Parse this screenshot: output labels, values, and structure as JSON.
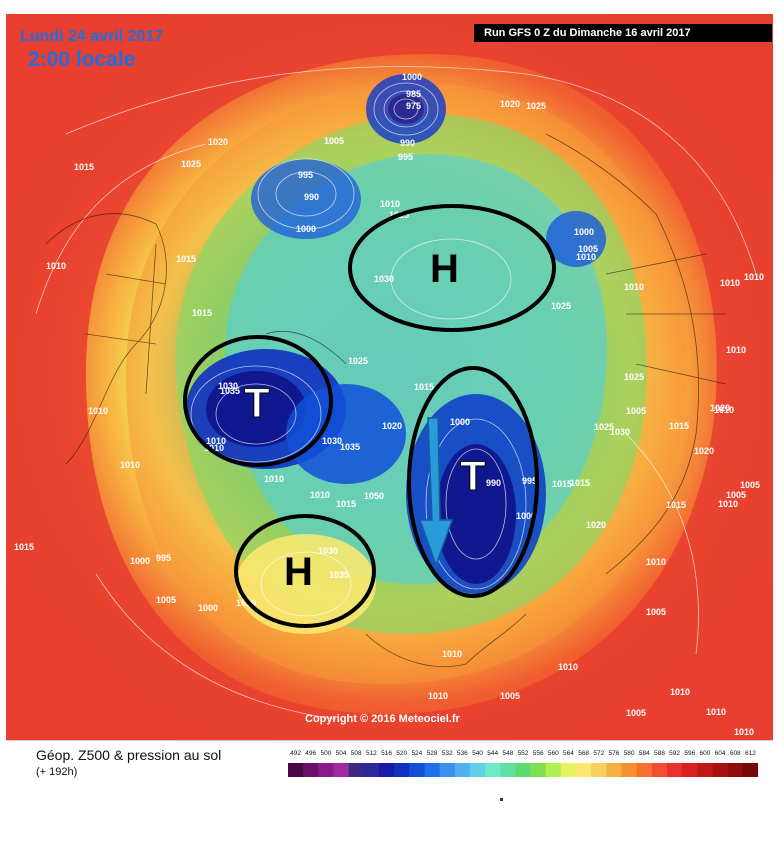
{
  "header": {
    "date": "Lundi 24 avril 2017",
    "time": "2:00 locale",
    "run": "Run GFS 0 Z du Dimanche 16 avril 2017"
  },
  "copyright": "Copyright © 2016 Meteociel.fr",
  "legend": {
    "title": "Géop. Z500 & pression au sol",
    "subtitle": "(+ 192h)",
    "scale_values": [
      "492",
      "496",
      "500",
      "504",
      "508",
      "512",
      "516",
      "520",
      "524",
      "528",
      "532",
      "536",
      "540",
      "544",
      "548",
      "552",
      "556",
      "560",
      "564",
      "568",
      "572",
      "576",
      "580",
      "584",
      "588",
      "592",
      "596",
      "600",
      "604",
      "608",
      "612"
    ],
    "scale_colors": [
      "#4a0a4a",
      "#6a106a",
      "#8a1a8a",
      "#a02aa0",
      "#3a2a80",
      "#2a2a9a",
      "#1a1aa8",
      "#1030c0",
      "#1050d8",
      "#2070e8",
      "#3a90f0",
      "#50b0f0",
      "#60d0e8",
      "#70e8c8",
      "#60e0a0",
      "#60d870",
      "#80e050",
      "#b0f050",
      "#e8f060",
      "#f8e870",
      "#f8d060",
      "#f8b040",
      "#f89030",
      "#f87030",
      "#f05030",
      "#e83030",
      "#d82020",
      "#c01818",
      "#a81010",
      "#900c0c",
      "#780808"
    ]
  },
  "systems": [
    {
      "letter": "H"
    },
    {
      "letter": "T"
    },
    {
      "letter": "T"
    },
    {
      "letter": "H"
    }
  ],
  "pressure_labels": [
    "1000",
    "985",
    "975",
    "1020",
    "1025",
    "1020",
    "1005",
    "990",
    "995",
    "1025",
    "1015",
    "995",
    "990",
    "1000",
    "1010",
    "1015",
    "1000",
    "1005",
    "1010",
    "1030",
    "1025",
    "1010",
    "1010",
    "1010",
    "1015",
    "1015",
    "1025",
    "1030",
    "1035",
    "1025",
    "1015",
    "1010",
    "1010",
    "1030",
    "1000",
    "1020",
    "1035",
    "1025",
    "1030",
    "1015",
    "1010",
    "1010",
    "1050",
    "1015",
    "990",
    "995",
    "1000",
    "1010",
    "1015",
    "1010",
    "1020",
    "1005",
    "1015",
    "1015",
    "1000",
    "995",
    "1010",
    "1030",
    "1035",
    "1005",
    "1000",
    "1010",
    "1010",
    "1010",
    "1020",
    "1005",
    "1010",
    "1005",
    "1010",
    "1010",
    "1020",
    "1010",
    "1005",
    "1005",
    "1010",
    "1005",
    "1010",
    "1015",
    "1010",
    "1010"
  ],
  "colors": {
    "ocean_red": "#e83030",
    "marker": "#000000",
    "arrow": "#2a9ad8"
  }
}
